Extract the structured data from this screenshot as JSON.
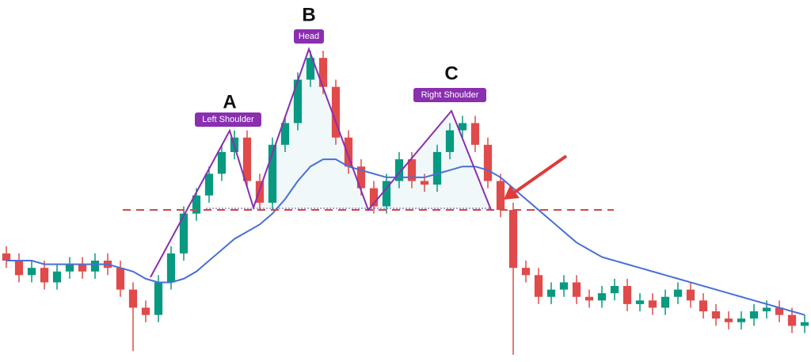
{
  "chart_data": {
    "type": "candlestick",
    "labels": [
      "A",
      "B",
      "C"
    ],
    "tags": [
      "Left Shoulder",
      "Head",
      "Right Shoulder"
    ],
    "ylim": [
      0,
      100
    ],
    "up_color": "#089981",
    "down_color": "#e04a4a",
    "ma_color": "#4a6fd6",
    "open": [
      30,
      28,
      24,
      26,
      22,
      25,
      27,
      25,
      28,
      26,
      20,
      15,
      13,
      22,
      30,
      41,
      46,
      52,
      58,
      62,
      50,
      44,
      60,
      66,
      78,
      84,
      76,
      62,
      54,
      48,
      43,
      50,
      56,
      50,
      49,
      58,
      64,
      66,
      60,
      50,
      42,
      26,
      24,
      18,
      20,
      22,
      18,
      17,
      19,
      21,
      16,
      17,
      15,
      18,
      20,
      17,
      14,
      12,
      11,
      12,
      14,
      15,
      13,
      10
    ],
    "high": [
      32,
      30,
      28,
      28,
      27,
      29,
      29,
      30,
      30,
      28,
      22,
      17,
      24,
      32,
      43,
      48,
      54,
      60,
      64,
      64,
      52,
      62,
      68,
      80,
      86,
      86,
      78,
      64,
      56,
      50,
      52,
      58,
      58,
      52,
      60,
      66,
      68,
      68,
      62,
      52,
      44,
      28,
      26,
      22,
      24,
      24,
      20,
      21,
      23,
      23,
      19,
      19,
      20,
      22,
      22,
      19,
      16,
      14,
      14,
      16,
      17,
      17,
      15,
      13
    ],
    "low": [
      26,
      22,
      22,
      20,
      20,
      23,
      23,
      23,
      24,
      18,
      3,
      11,
      11,
      20,
      28,
      39,
      44,
      50,
      56,
      48,
      42,
      42,
      58,
      64,
      76,
      74,
      60,
      52,
      46,
      41,
      41,
      48,
      48,
      47,
      47,
      56,
      62,
      58,
      48,
      40,
      2,
      22,
      16,
      16,
      18,
      16,
      15,
      15,
      17,
      14,
      14,
      13,
      13,
      16,
      15,
      12,
      10,
      9,
      9,
      10,
      12,
      11,
      8,
      8
    ],
    "close": [
      28,
      24,
      26,
      22,
      25,
      27,
      25,
      28,
      26,
      20,
      15,
      13,
      22,
      30,
      41,
      46,
      52,
      58,
      62,
      50,
      44,
      60,
      66,
      78,
      84,
      76,
      62,
      54,
      48,
      43,
      50,
      56,
      50,
      49,
      58,
      64,
      66,
      60,
      50,
      42,
      26,
      24,
      18,
      20,
      22,
      18,
      17,
      19,
      21,
      16,
      17,
      15,
      18,
      20,
      17,
      14,
      12,
      11,
      12,
      14,
      15,
      13,
      10,
      11
    ],
    "ma": [
      28,
      28,
      28,
      27,
      27,
      27,
      27,
      27,
      27,
      26,
      25,
      23,
      22,
      22,
      23,
      25,
      28,
      31,
      34,
      36,
      38,
      41,
      45,
      50,
      54,
      56,
      56,
      54,
      53,
      52,
      51,
      51,
      51,
      51,
      52,
      53,
      54,
      54,
      53,
      51,
      48,
      45,
      42,
      39,
      36,
      33,
      31,
      29,
      28,
      27,
      26,
      25,
      24,
      23,
      22,
      21,
      20,
      19,
      18,
      17,
      16,
      15,
      14,
      13
    ]
  }
}
